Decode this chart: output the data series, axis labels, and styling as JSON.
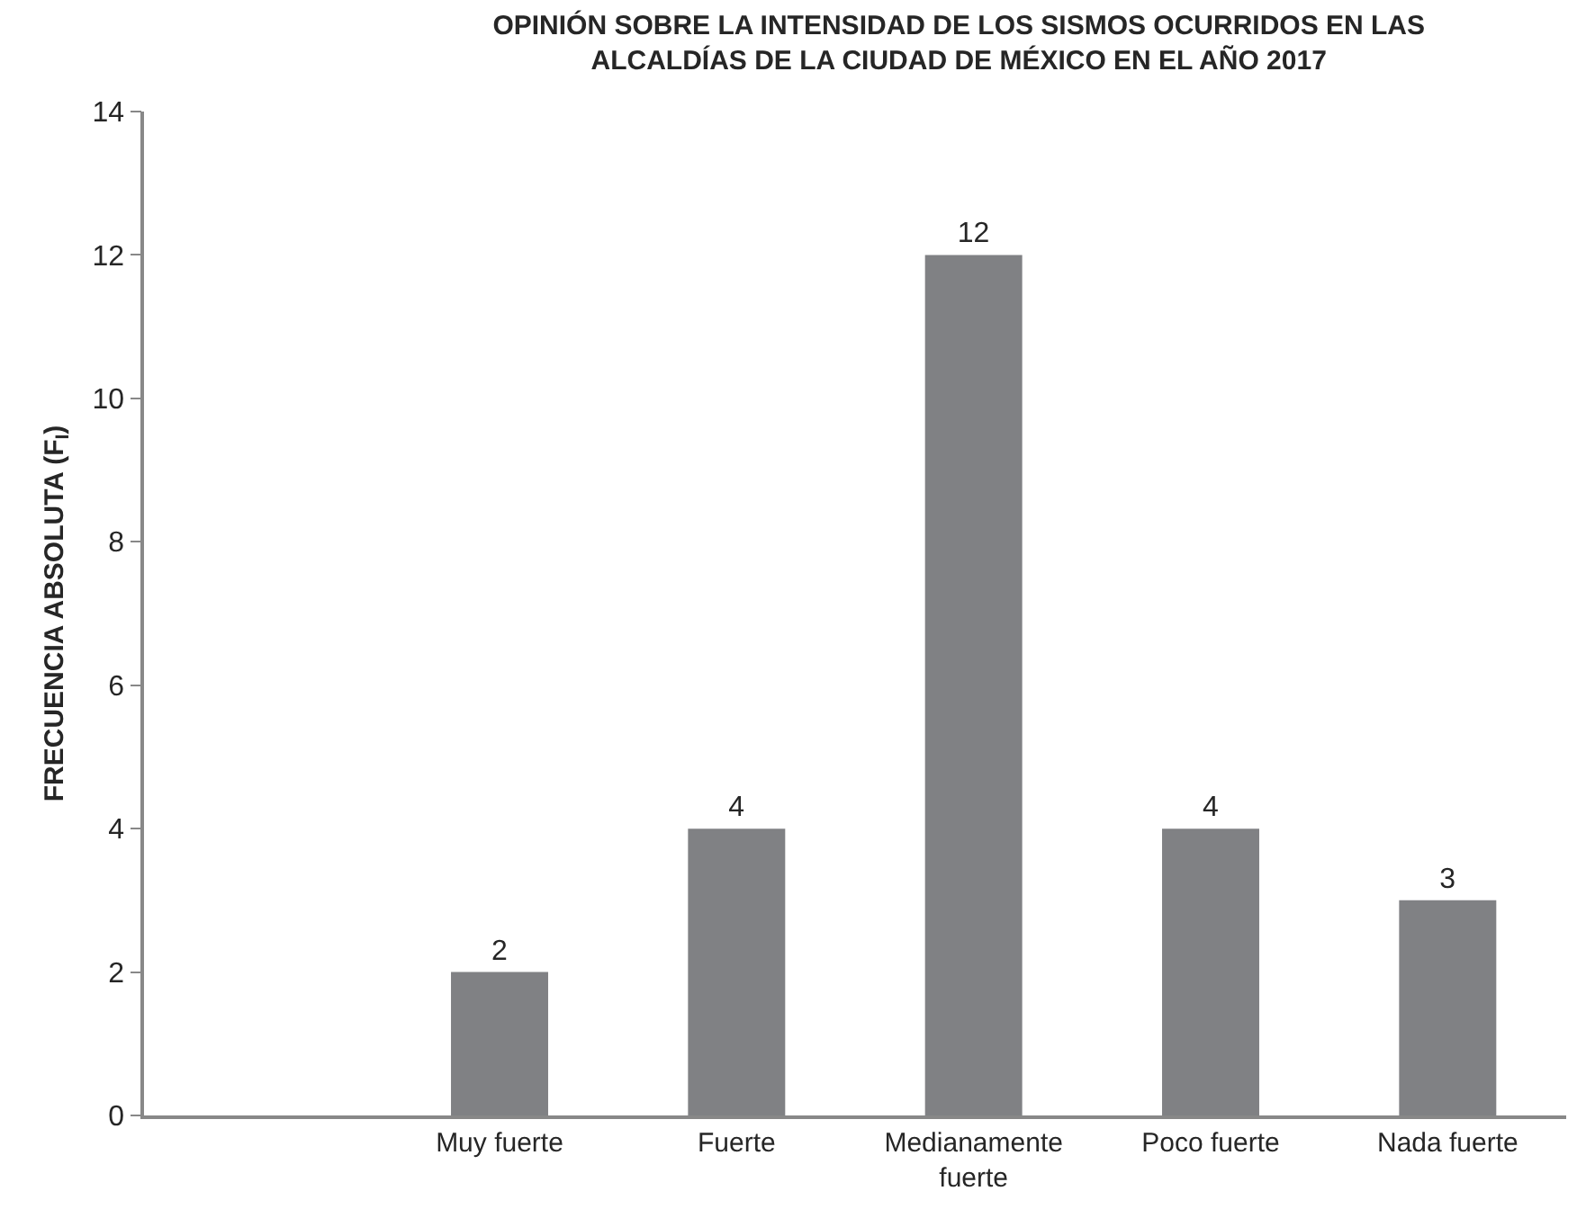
{
  "chart_data": {
    "type": "bar",
    "title": "OPINIÓN SOBRE LA INTENSIDAD DE LOS SISMOS OCURRIDOS EN LAS ALCALDÍAS DE LA CIUDAD DE MÉXICO EN EL AÑO 2017",
    "ylabel": "FRECUENCIA ABSOLUTA (F$_{I}$)",
    "categories": [
      null,
      "Muy fuerte",
      "Fuerte",
      "Medianamente fuerte",
      "Poco fuerte",
      "Nada fuerte"
    ],
    "values": [
      null,
      2,
      4,
      12,
      4,
      3
    ],
    "color": "#808184",
    "ylim": [
      0,
      14
    ],
    "yticks": [
      0,
      2,
      4,
      6,
      8,
      10,
      12,
      14
    ],
    "data_labels": true,
    "grid": false
  }
}
